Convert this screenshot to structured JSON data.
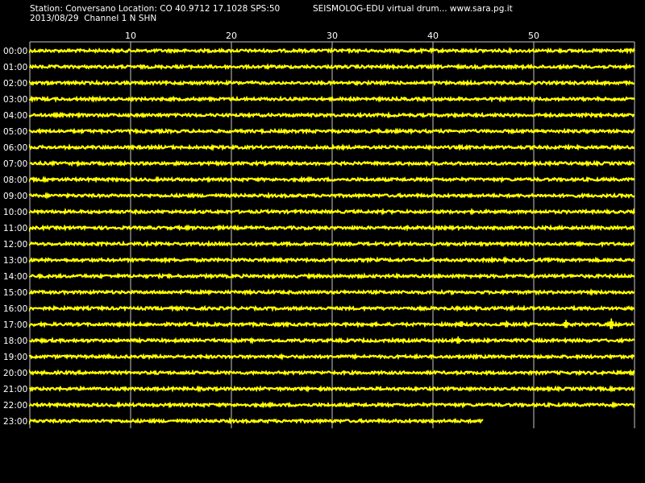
{
  "header": {
    "station_line": "Station: Conversano Location: CO 40.9712 17.1028 SPS:50",
    "right_line": "SEISMOLOG-EDU virtual drum... www.sara.pg.it",
    "date_line": "2013/08/29  Channel 1 N SHN"
  },
  "colors": {
    "background": "#000000",
    "trace": "#ffff00",
    "grid": "#c8c8c8",
    "text": "#ffffff"
  },
  "chart_data": {
    "type": "line",
    "title": "",
    "xlabel": "",
    "ylabel": "",
    "xlim": [
      0,
      60
    ],
    "x_ticks": [
      "10",
      "20",
      "30",
      "40",
      "50"
    ],
    "x_tick_values": [
      10,
      20,
      30,
      40,
      50
    ],
    "rows": [
      "00:00",
      "01:00",
      "02:00",
      "03:00",
      "04:00",
      "05:00",
      "06:00",
      "07:00",
      "08:00",
      "09:00",
      "10:00",
      "11:00",
      "12:00",
      "13:00",
      "14:00",
      "15:00",
      "16:00",
      "17:00",
      "18:00",
      "19:00",
      "20:00",
      "21:00",
      "22:00",
      "23:00"
    ],
    "row_end_minute": [
      60,
      60,
      60,
      60,
      60,
      60,
      60,
      60,
      60,
      60,
      60,
      60,
      60,
      60,
      60,
      60,
      60,
      60,
      60,
      60,
      60,
      60,
      60,
      45
    ],
    "events": [
      {
        "row": "17:00",
        "minute": 42.8,
        "amplitude": 0.4
      },
      {
        "row": "17:00",
        "minute": 47.3,
        "amplitude": 0.5
      },
      {
        "row": "17:00",
        "minute": 53.2,
        "amplitude": 0.7
      },
      {
        "row": "17:00",
        "minute": 57.7,
        "amplitude": 1.0
      },
      {
        "row": "18:00",
        "minute": 42.5,
        "amplitude": 0.6
      }
    ],
    "grid": true
  }
}
